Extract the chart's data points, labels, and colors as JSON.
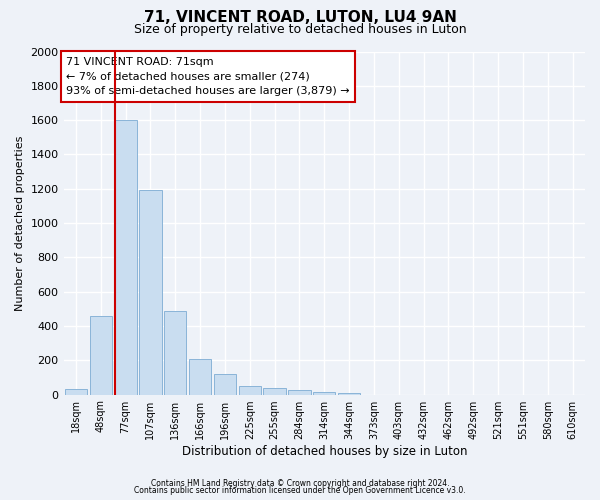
{
  "title": "71, VINCENT ROAD, LUTON, LU4 9AN",
  "subtitle": "Size of property relative to detached houses in Luton",
  "xlabel": "Distribution of detached houses by size in Luton",
  "ylabel": "Number of detached properties",
  "bar_labels": [
    "18sqm",
    "48sqm",
    "77sqm",
    "107sqm",
    "136sqm",
    "166sqm",
    "196sqm",
    "225sqm",
    "255sqm",
    "284sqm",
    "314sqm",
    "344sqm",
    "373sqm",
    "403sqm",
    "432sqm",
    "462sqm",
    "492sqm",
    "521sqm",
    "551sqm",
    "580sqm",
    "610sqm"
  ],
  "bar_values": [
    35,
    460,
    1600,
    1190,
    490,
    210,
    120,
    50,
    40,
    25,
    15,
    8,
    0,
    0,
    0,
    0,
    0,
    0,
    0,
    0,
    0
  ],
  "bar_color": "#c9ddf0",
  "bar_edgecolor": "#8ab4d8",
  "ylim": [
    0,
    2000
  ],
  "yticks": [
    0,
    200,
    400,
    600,
    800,
    1000,
    1200,
    1400,
    1600,
    1800,
    2000
  ],
  "vline_color": "#cc0000",
  "annotation_title": "71 VINCENT ROAD: 71sqm",
  "annotation_line1": "← 7% of detached houses are smaller (274)",
  "annotation_line2": "93% of semi-detached houses are larger (3,879) →",
  "annotation_box_color": "#ffffff",
  "annotation_box_edgecolor": "#cc0000",
  "footer1": "Contains HM Land Registry data © Crown copyright and database right 2024.",
  "footer2": "Contains public sector information licensed under the Open Government Licence v3.0.",
  "bg_color": "#eef2f8",
  "plot_bg_color": "#eef2f8",
  "grid_color": "#ffffff",
  "title_fontsize": 11,
  "subtitle_fontsize": 9
}
